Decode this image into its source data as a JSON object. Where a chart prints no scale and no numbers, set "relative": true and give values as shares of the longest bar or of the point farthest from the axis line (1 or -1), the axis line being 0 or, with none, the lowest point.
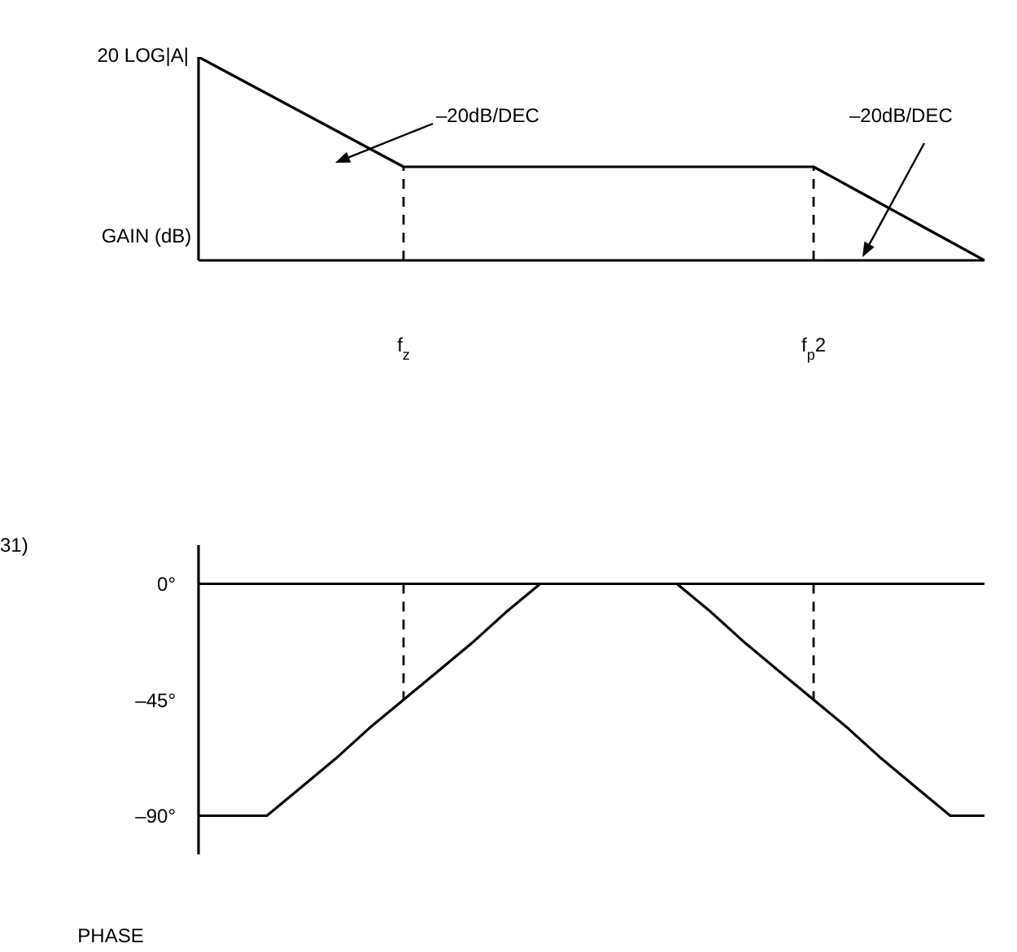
{
  "chart_data": [
    {
      "type": "line",
      "relative": true,
      "ylabel": "GAIN (dB)",
      "tick_labels": "x",
      "categories": [
        null,
        null,
        null,
        null,
        null,
        null,
        "f$_{z}$",
        null,
        null,
        null,
        null,
        null,
        null,
        null,
        null,
        null,
        null,
        null,
        "f$_{p}$2",
        null,
        null,
        null,
        null,
        null
      ],
      "series": [
        {
          "color": "#000000",
          "values": [
            1,
            0.91,
            0.82,
            0.73,
            0.64,
            0.55,
            0.46,
            0.46,
            0.46,
            0.46,
            0.46,
            0.46,
            0.46,
            0.46,
            0.46,
            0.46,
            0.46,
            0.46,
            0.46,
            0.368,
            0.276,
            0.184,
            0.092,
            0
          ]
        }
      ],
      "ref_lines": [
        {
          "axis": "x",
          "value": "f$_{z}$",
          "line_style": "dashed",
          "color": "#000000"
        },
        {
          "axis": "x",
          "value": "f$_{p}$2",
          "line_style": "dashed",
          "color": "#000000"
        }
      ],
      "annotations": [
        "20 LOG|A|",
        "–20dB/DEC",
        "–20dB/DEC",
        "31)"
      ]
    },
    {
      "type": "line",
      "ylabel": "PHASE",
      "tick_labels": "y",
      "ylim": [
        -105,
        15
      ],
      "yticks": [
        {
          "value": 0,
          "label": "0°"
        },
        {
          "value": -45,
          "label": "–45°"
        },
        {
          "value": -90,
          "label": "–90°"
        }
      ],
      "categories": [
        null,
        null,
        null,
        null,
        null,
        null,
        "f$_{z}$",
        null,
        null,
        null,
        null,
        null,
        null,
        null,
        null,
        null,
        null,
        null,
        "f$_{p}$2",
        null,
        null,
        null,
        null,
        null
      ],
      "series": [
        {
          "color": "#000000",
          "values": [
            -90,
            -90,
            -90,
            -79,
            -68,
            -56,
            -45,
            -34,
            -23,
            -11,
            0,
            0,
            0,
            0,
            0,
            -11,
            -23,
            -34,
            -45,
            -56,
            -68,
            -79,
            -90,
            -90
          ]
        }
      ],
      "ref_lines": [
        {
          "axis": "y",
          "value": 0,
          "line_style": "solid",
          "color": "#000000"
        },
        {
          "axis": "x",
          "value": "f$_{z}$",
          "line_style": "dashed",
          "color": "#000000"
        },
        {
          "axis": "x",
          "value": "f$_{p}$2",
          "line_style": "dashed",
          "color": "#000000"
        }
      ]
    }
  ]
}
